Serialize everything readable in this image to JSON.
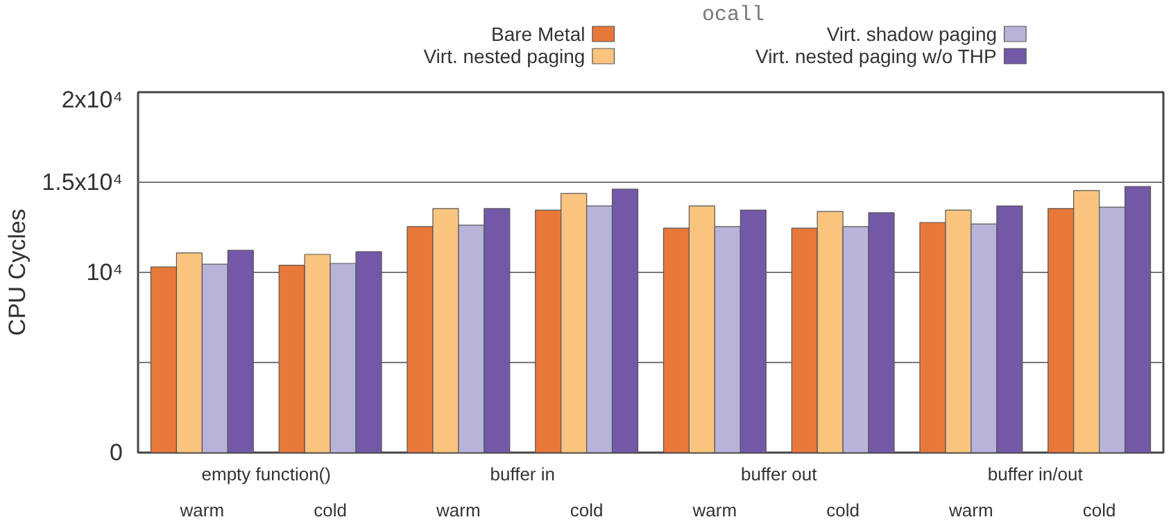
{
  "chart_data": {
    "type": "bar",
    "title": "ocall",
    "ylabel": "CPU Cycles",
    "categories": [
      "warm",
      "cold",
      "warm",
      "cold",
      "warm",
      "cold",
      "warm",
      "cold"
    ],
    "annotations": [
      "empty function()",
      "buffer in",
      "buffer out",
      "buffer in/out"
    ],
    "series": [
      {
        "name": "Bare Metal",
        "color": "#e8773a",
        "values": [
          10300,
          10400,
          12540,
          13460,
          12460,
          12460,
          12770,
          13540
        ]
      },
      {
        "name": "Virt. nested paging",
        "color": "#fbc47e",
        "values": [
          11080,
          11000,
          13540,
          14380,
          13690,
          13380,
          13460,
          14540
        ]
      },
      {
        "name": "Virt. shadow paging",
        "color": "#b8b3d8",
        "values": [
          10460,
          10500,
          12620,
          13690,
          12540,
          12540,
          12690,
          13620
        ]
      },
      {
        "name": "Virt. nested paging w/o THP",
        "color": "#7458a8",
        "values": [
          11230,
          11150,
          13540,
          14620,
          13460,
          13310,
          13690,
          14770
        ]
      }
    ],
    "ylim": [
      0,
      20000
    ],
    "yticks": [
      0,
      {
        "value": 5000,
        "label": null
      },
      {
        "value": 10000,
        "label": "10⁴"
      },
      {
        "value": 15000,
        "label": "1.5x10⁴"
      },
      {
        "value": 20000,
        "label": "2x10⁴"
      }
    ],
    "grid": "y",
    "legend": "top"
  }
}
